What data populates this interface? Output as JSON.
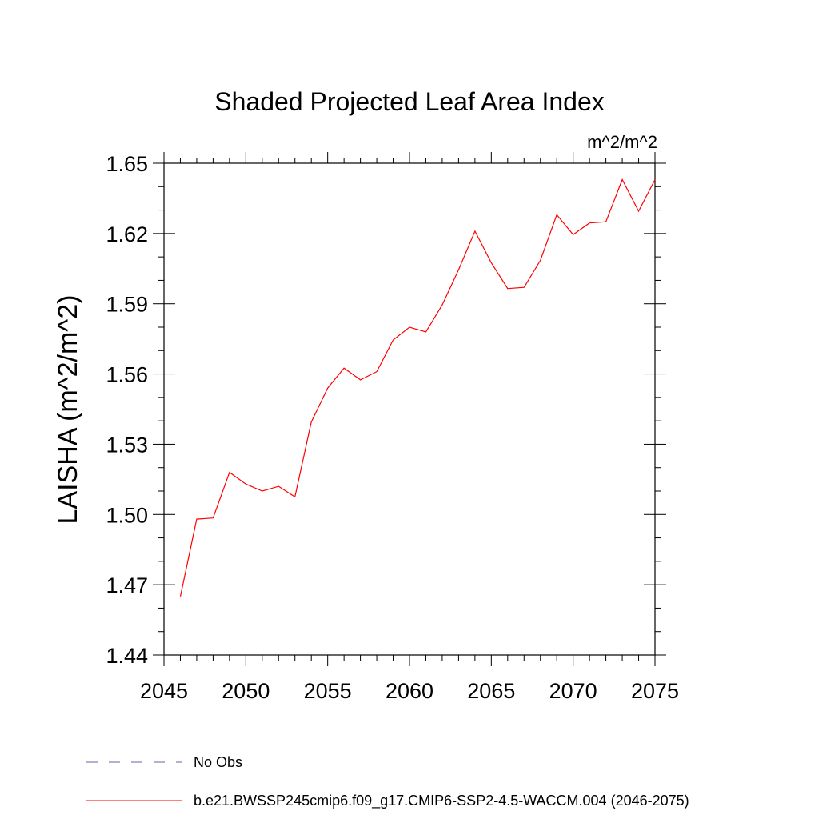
{
  "chart_data": {
    "type": "line",
    "title": "Shaded Projected Leaf Area Index",
    "units": "m^2/m^2",
    "ylabel": "LAISHA  (m^2/m^2)",
    "xlabel": "",
    "xlim": [
      2045,
      2075
    ],
    "ylim": [
      1.44,
      1.65
    ],
    "x_ticks": [
      2045,
      2050,
      2055,
      2060,
      2065,
      2070,
      2075
    ],
    "x_tick_labels": [
      "2045",
      "2050",
      "2055",
      "2060",
      "2065",
      "2070",
      "2075"
    ],
    "y_ticks": [
      1.44,
      1.47,
      1.5,
      1.53,
      1.56,
      1.59,
      1.62,
      1.65
    ],
    "y_tick_labels": [
      "1.44",
      "1.47",
      "1.50",
      "1.53",
      "1.56",
      "1.59",
      "1.62",
      "1.65"
    ],
    "grid": false,
    "legend_position": "bottom",
    "series": [
      {
        "name": "b.e21.BWSSP245cmip6.f09_g17.CMIP6-SSP2-4.5-WACCM.004 (2046-2075)",
        "color": "#ff0000",
        "style": "solid",
        "x": [
          2046,
          2047,
          2048,
          2049,
          2050,
          2051,
          2052,
          2053,
          2054,
          2055,
          2056,
          2057,
          2058,
          2059,
          2060,
          2061,
          2062,
          2063,
          2064,
          2065,
          2066,
          2067,
          2068,
          2069,
          2070,
          2071,
          2072,
          2073,
          2074,
          2075
        ],
        "values": [
          1.465,
          1.498,
          1.4985,
          1.518,
          1.513,
          1.51,
          1.512,
          1.5075,
          1.5395,
          1.554,
          1.5625,
          1.5575,
          1.561,
          1.5745,
          1.58,
          1.578,
          1.5895,
          1.6045,
          1.621,
          1.6075,
          1.5965,
          1.597,
          1.6085,
          1.628,
          1.6195,
          1.6245,
          1.625,
          1.643,
          1.6295,
          1.643
        ]
      },
      {
        "name": "No Obs",
        "color": "#6b5fa6",
        "style": "dashed",
        "x": [],
        "values": []
      }
    ]
  }
}
